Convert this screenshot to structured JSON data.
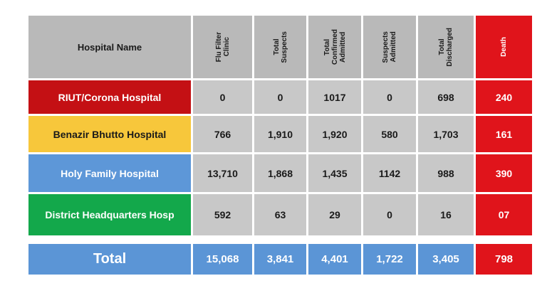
{
  "headers": {
    "name": "Hospital Name",
    "flu": "Flu Filter\nClinic",
    "suspects": "Total\nSuspects",
    "confirmed": "Total\nConfirmed\nAdmitted",
    "susp_admitted": "Suspects\nAdmitted",
    "discharged": "Total\nDischarged",
    "death": "Death"
  },
  "rows": [
    {
      "name": "RIUT/Corona Hospital",
      "flu": "0",
      "suspects": "0",
      "confirmed": "1017",
      "susp_admitted": "0",
      "discharged": "698",
      "death": "240",
      "color": "#c41014"
    },
    {
      "name": "Benazir Bhutto Hospital",
      "flu": "766",
      "suspects": "1,910",
      "confirmed": "1,920",
      "susp_admitted": "580",
      "discharged": "1,703",
      "death": "161",
      "color": "#f7c73b"
    },
    {
      "name": "Holy Family Hospital",
      "flu": "13,710",
      "suspects": "1,868",
      "confirmed": "1,435",
      "susp_admitted": "1142",
      "discharged": "988",
      "death": "390",
      "color": "#5d97d8"
    },
    {
      "name": "District Headquarters Hosp",
      "flu": "592",
      "suspects": "63",
      "confirmed": "29",
      "susp_admitted": "0",
      "discharged": "16",
      "death": "07",
      "color": "#13a84b"
    }
  ],
  "total": {
    "label": "Total",
    "flu": "15,068",
    "suspects": "3,841",
    "confirmed": "4,401",
    "susp_admitted": "1,722",
    "discharged": "3,405",
    "death": "798"
  },
  "colors": {
    "death": "#e0141b",
    "total": "#5b95d6",
    "header": "#b9b9b9",
    "cell": "#c8c8c8"
  }
}
